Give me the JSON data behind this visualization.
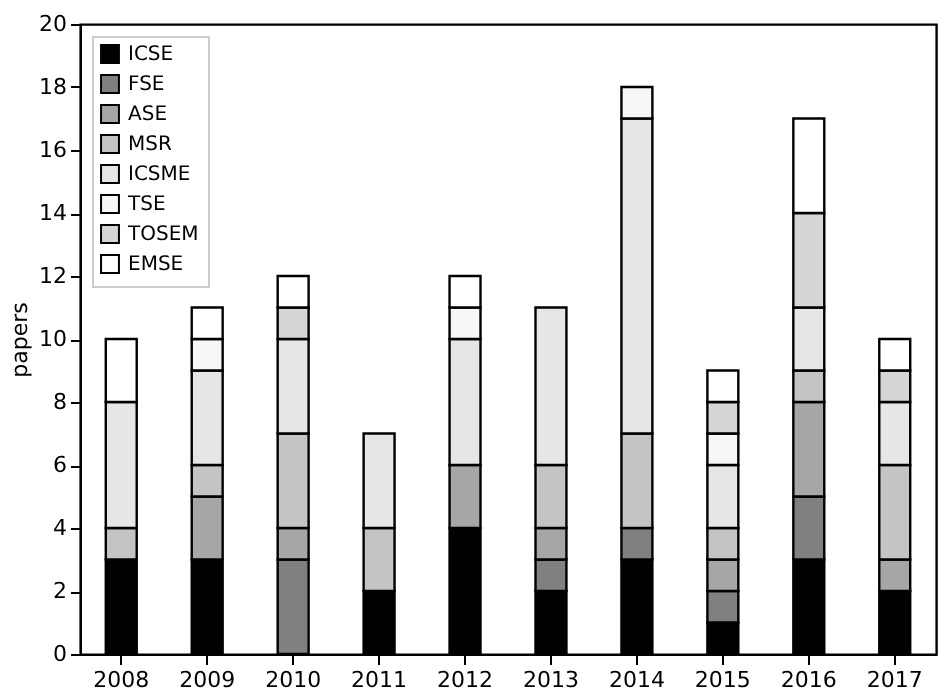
{
  "chart_data": {
    "type": "bar",
    "stacked": true,
    "ylabel": "papers",
    "categories": [
      "2008",
      "2009",
      "2010",
      "2011",
      "2012",
      "2013",
      "2014",
      "2015",
      "2016",
      "2017"
    ],
    "series": [
      {
        "name": "ICSE",
        "color": "#000000",
        "values": [
          3,
          3,
          0,
          2,
          4,
          2,
          3,
          1,
          3,
          2
        ]
      },
      {
        "name": "FSE",
        "color": "#808080",
        "values": [
          0,
          0,
          3,
          0,
          0,
          1,
          1,
          1,
          2,
          0
        ]
      },
      {
        "name": "ASE",
        "color": "#a6a6a6",
        "values": [
          0,
          2,
          1,
          0,
          2,
          1,
          0,
          1,
          3,
          1
        ]
      },
      {
        "name": "MSR",
        "color": "#c4c4c4",
        "values": [
          1,
          1,
          3,
          2,
          0,
          2,
          3,
          1,
          1,
          3
        ]
      },
      {
        "name": "ICSME",
        "color": "#e6e6e6",
        "values": [
          4,
          3,
          3,
          3,
          4,
          5,
          10,
          2,
          2,
          2
        ]
      },
      {
        "name": "TSE",
        "color": "#f7f7f7",
        "values": [
          0,
          1,
          0,
          0,
          1,
          0,
          1,
          1,
          0,
          0
        ]
      },
      {
        "name": "TOSEM",
        "color": "#d6d6d6",
        "values": [
          0,
          0,
          1,
          0,
          0,
          0,
          0,
          1,
          3,
          1
        ]
      },
      {
        "name": "EMSE",
        "color": "#ffffff",
        "values": [
          2,
          1,
          1,
          0,
          1,
          0,
          0,
          1,
          3,
          1
        ]
      }
    ],
    "ylim": [
      0,
      20
    ],
    "yticks": [
      0,
      2,
      4,
      6,
      8,
      10,
      12,
      14,
      16,
      18,
      20
    ],
    "grid": false,
    "legend": "top left"
  }
}
